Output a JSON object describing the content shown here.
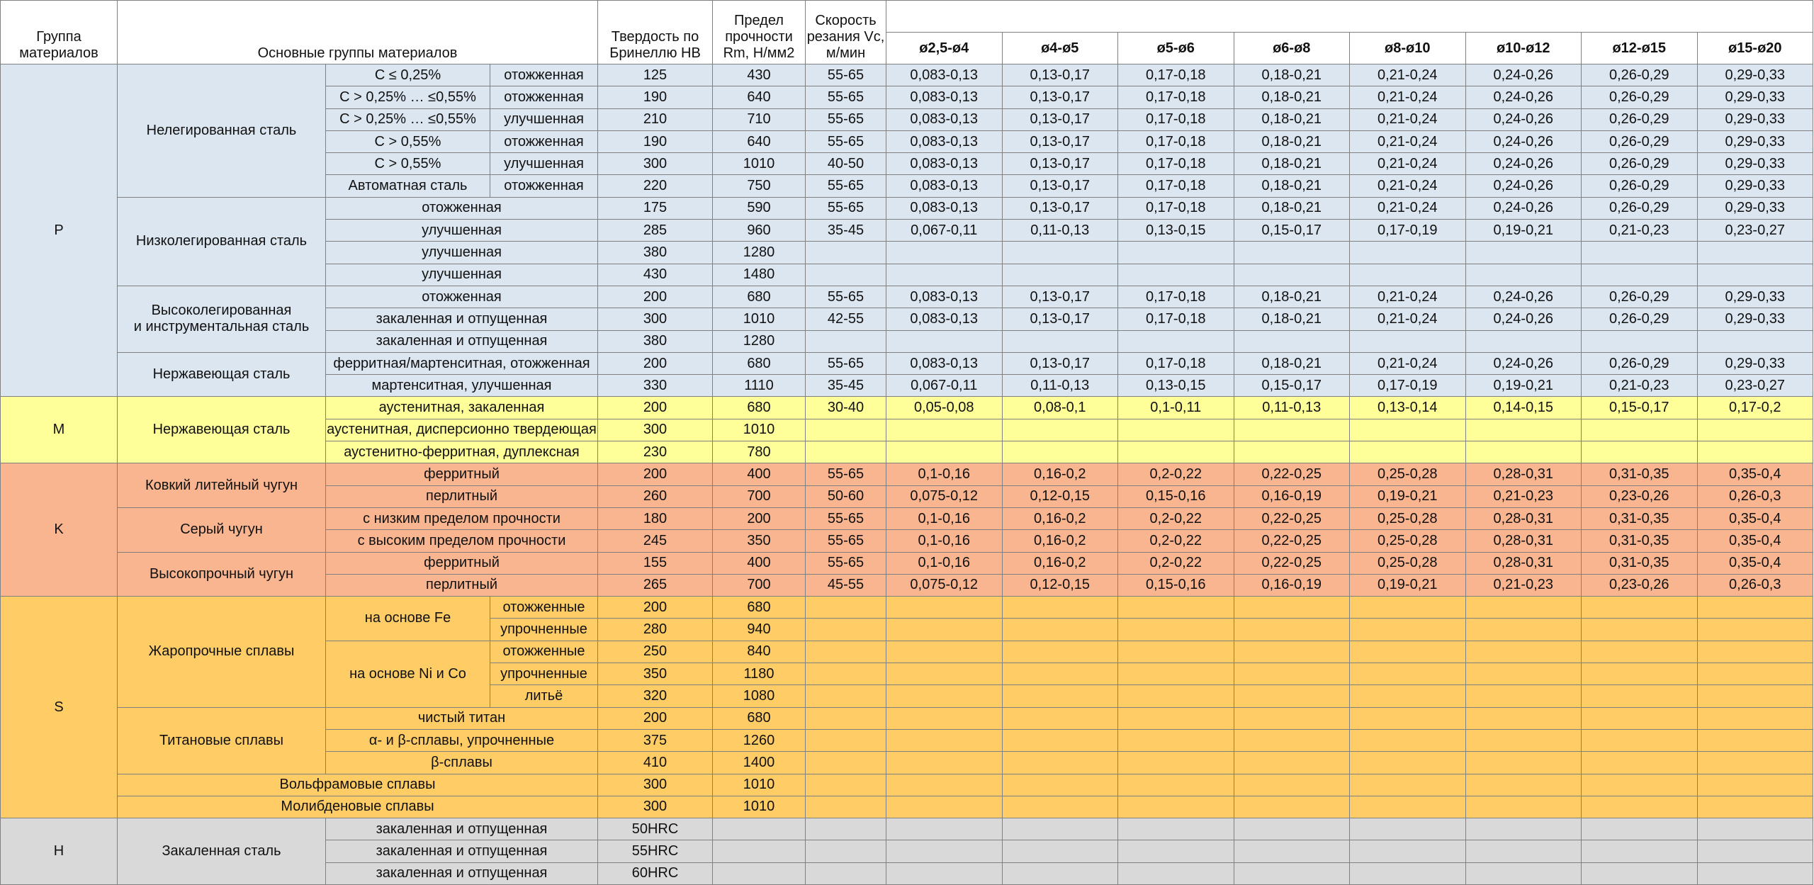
{
  "header": {
    "group": "Группа материалов",
    "main": "Основные группы материалов",
    "hb": "Твердость по Бринеллю HB",
    "rm": "Предел прочности Rm, Н/мм2",
    "vc": "Скорость резания Vc, м/мин",
    "diameters": [
      "ø2,5-ø4",
      "ø4-ø5",
      "ø5-ø6",
      "ø6-ø8",
      "ø8-ø10",
      "ø10-ø12",
      "ø12-ø15",
      "ø15-ø20"
    ]
  },
  "groups": [
    {
      "code": "P",
      "color": "#dce6f1",
      "families": [
        {
          "name": "Нелегированная сталь",
          "rows": [
            {
              "sub": "C ≤ 0,25%",
              "cond": "отожженная",
              "hb": 125,
              "rm": 430,
              "vc": "55-65",
              "feeds": [
                "0,083-0,13",
                "0,13-0,17",
                "0,17-0,18",
                "0,18-0,21",
                "0,21-0,24",
                "0,24-0,26",
                "0,26-0,29",
                "0,29-0,33"
              ]
            },
            {
              "sub": "C > 0,25% … ≤0,55%",
              "cond": "отожженная",
              "hb": 190,
              "rm": 640,
              "vc": "55-65",
              "feeds": [
                "0,083-0,13",
                "0,13-0,17",
                "0,17-0,18",
                "0,18-0,21",
                "0,21-0,24",
                "0,24-0,26",
                "0,26-0,29",
                "0,29-0,33"
              ]
            },
            {
              "sub": "C > 0,25% … ≤0,55%",
              "cond": "улучшенная",
              "hb": 210,
              "rm": 710,
              "vc": "55-65",
              "feeds": [
                "0,083-0,13",
                "0,13-0,17",
                "0,17-0,18",
                "0,18-0,21",
                "0,21-0,24",
                "0,24-0,26",
                "0,26-0,29",
                "0,29-0,33"
              ]
            },
            {
              "sub": "C > 0,55%",
              "cond": "отожженная",
              "hb": 190,
              "rm": 640,
              "vc": "55-65",
              "feeds": [
                "0,083-0,13",
                "0,13-0,17",
                "0,17-0,18",
                "0,18-0,21",
                "0,21-0,24",
                "0,24-0,26",
                "0,26-0,29",
                "0,29-0,33"
              ]
            },
            {
              "sub": "C > 0,55%",
              "cond": "улучшенная",
              "hb": 300,
              "rm": 1010,
              "vc": "40-50",
              "feeds": [
                "0,083-0,13",
                "0,13-0,17",
                "0,17-0,18",
                "0,18-0,21",
                "0,21-0,24",
                "0,24-0,26",
                "0,26-0,29",
                "0,29-0,33"
              ]
            },
            {
              "sub": "Автоматная сталь",
              "cond": "отожженная",
              "hb": 220,
              "rm": 750,
              "vc": "55-65",
              "feeds": [
                "0,083-0,13",
                "0,13-0,17",
                "0,17-0,18",
                "0,18-0,21",
                "0,21-0,24",
                "0,24-0,26",
                "0,26-0,29",
                "0,29-0,33"
              ]
            }
          ]
        },
        {
          "name": "Низколегированная сталь",
          "rows": [
            {
              "spec": "отожженная",
              "hb": 175,
              "rm": 590,
              "vc": "55-65",
              "feeds": [
                "0,083-0,13",
                "0,13-0,17",
                "0,17-0,18",
                "0,18-0,21",
                "0,21-0,24",
                "0,24-0,26",
                "0,26-0,29",
                "0,29-0,33"
              ]
            },
            {
              "spec": "улучшенная",
              "hb": 285,
              "rm": 960,
              "vc": "35-45",
              "feeds": [
                "0,067-0,11",
                "0,11-0,13",
                "0,13-0,15",
                "0,15-0,17",
                "0,17-0,19",
                "0,19-0,21",
                "0,21-0,23",
                "0,23-0,27"
              ]
            },
            {
              "spec": "улучшенная",
              "hb": 380,
              "rm": 1280
            },
            {
              "spec": "улучшенная",
              "hb": 430,
              "rm": 1480
            }
          ]
        },
        {
          "name": "Высоколегированная\nи инструментальная сталь",
          "rows": [
            {
              "spec": "отожженная",
              "hb": 200,
              "rm": 680,
              "vc": "55-65",
              "feeds": [
                "0,083-0,13",
                "0,13-0,17",
                "0,17-0,18",
                "0,18-0,21",
                "0,21-0,24",
                "0,24-0,26",
                "0,26-0,29",
                "0,29-0,33"
              ]
            },
            {
              "spec": "закаленная и отпущенная",
              "hb": 300,
              "rm": 1010,
              "vc": "42-55",
              "feeds": [
                "0,083-0,13",
                "0,13-0,17",
                "0,17-0,18",
                "0,18-0,21",
                "0,21-0,24",
                "0,24-0,26",
                "0,26-0,29",
                "0,29-0,33"
              ]
            },
            {
              "spec": "закаленная и отпущенная",
              "hb": 380,
              "rm": 1280
            }
          ]
        },
        {
          "name": "Нержавеющая сталь",
          "rows": [
            {
              "spec": "ферритная/мартенситная, отожженная",
              "hb": 200,
              "rm": 680,
              "vc": "55-65",
              "feeds": [
                "0,083-0,13",
                "0,13-0,17",
                "0,17-0,18",
                "0,18-0,21",
                "0,21-0,24",
                "0,24-0,26",
                "0,26-0,29",
                "0,29-0,33"
              ]
            },
            {
              "spec": "мартенситная, улучшенная",
              "hb": 330,
              "rm": 1110,
              "vc": "35-45",
              "feeds": [
                "0,067-0,11",
                "0,11-0,13",
                "0,13-0,15",
                "0,15-0,17",
                "0,17-0,19",
                "0,19-0,21",
                "0,21-0,23",
                "0,23-0,27"
              ]
            }
          ]
        }
      ]
    },
    {
      "code": "M",
      "color": "#ffff99",
      "families": [
        {
          "name": "Нержавеющая сталь",
          "rows": [
            {
              "spec": "аустенитная, закаленная",
              "hb": 200,
              "rm": 680,
              "vc": "30-40",
              "feeds": [
                "0,05-0,08",
                "0,08-0,1",
                "0,1-0,11",
                "0,11-0,13",
                "0,13-0,14",
                "0,14-0,15",
                "0,15-0,17",
                "0,17-0,2"
              ]
            },
            {
              "spec": "аустенитная, дисперсионно твердеющая",
              "hb": 300,
              "rm": 1010
            },
            {
              "spec": "аустенитно-ферритная, дуплексная",
              "hb": 230,
              "rm": 780
            }
          ]
        }
      ]
    },
    {
      "code": "K",
      "color": "#f8b58f",
      "families": [
        {
          "name": "Ковкий литейный чугун",
          "rows": [
            {
              "spec": "ферритный",
              "hb": 200,
              "rm": 400,
              "vc": "55-65",
              "feeds": [
                "0,1-0,16",
                "0,16-0,2",
                "0,2-0,22",
                "0,22-0,25",
                "0,25-0,28",
                "0,28-0,31",
                "0,31-0,35",
                "0,35-0,4"
              ]
            },
            {
              "spec": "перлитный",
              "hb": 260,
              "rm": 700,
              "vc": "50-60",
              "feeds": [
                "0,075-0,12",
                "0,12-0,15",
                "0,15-0,16",
                "0,16-0,19",
                "0,19-0,21",
                "0,21-0,23",
                "0,23-0,26",
                "0,26-0,3"
              ]
            }
          ]
        },
        {
          "name": "Серый чугун",
          "rows": [
            {
              "spec": "с низким пределом прочности",
              "hb": 180,
              "rm": 200,
              "vc": "55-65",
              "feeds": [
                "0,1-0,16",
                "0,16-0,2",
                "0,2-0,22",
                "0,22-0,25",
                "0,25-0,28",
                "0,28-0,31",
                "0,31-0,35",
                "0,35-0,4"
              ]
            },
            {
              "spec": "с высоким пределом прочности",
              "hb": 245,
              "rm": 350,
              "vc": "55-65",
              "feeds": [
                "0,1-0,16",
                "0,16-0,2",
                "0,2-0,22",
                "0,22-0,25",
                "0,25-0,28",
                "0,28-0,31",
                "0,31-0,35",
                "0,35-0,4"
              ]
            }
          ]
        },
        {
          "name": "Высокопрочный чугун",
          "rows": [
            {
              "spec": "ферритный",
              "hb": 155,
              "rm": 400,
              "vc": "55-65",
              "feeds": [
                "0,1-0,16",
                "0,16-0,2",
                "0,2-0,22",
                "0,22-0,25",
                "0,25-0,28",
                "0,28-0,31",
                "0,31-0,35",
                "0,35-0,4"
              ]
            },
            {
              "spec": "перлитный",
              "hb": 265,
              "rm": 700,
              "vc": "45-55",
              "feeds": [
                "0,075-0,12",
                "0,12-0,15",
                "0,15-0,16",
                "0,16-0,19",
                "0,19-0,21",
                "0,21-0,23",
                "0,23-0,26",
                "0,26-0,3"
              ]
            }
          ]
        }
      ]
    },
    {
      "code": "S",
      "color": "#ffcc66",
      "families": [
        {
          "name": "Жаропрочные сплавы",
          "subgroups": [
            {
              "name": "на основе Fe",
              "rows": [
                {
                  "cond": "отожженные",
                  "hb": 200,
                  "rm": 680
                },
                {
                  "cond": "упрочненные",
                  "hb": 280,
                  "rm": 940
                }
              ]
            },
            {
              "name": "на основе Ni и Co",
              "rows": [
                {
                  "cond": "отожженные",
                  "hb": 250,
                  "rm": 840
                },
                {
                  "cond": "упрочненные",
                  "hb": 350,
                  "rm": 1180
                },
                {
                  "cond": "литьё",
                  "hb": 320,
                  "rm": 1080
                }
              ]
            }
          ]
        },
        {
          "name": "Титановые сплавы",
          "rows": [
            {
              "spec": "чистый титан",
              "hb": 200,
              "rm": 680
            },
            {
              "spec": "α- и β-сплавы, упрочненные",
              "hb": 375,
              "rm": 1260
            },
            {
              "spec": "β-сплавы",
              "hb": 410,
              "rm": 1400
            }
          ]
        },
        {
          "name": "Вольфрамовые сплавы",
          "rows": [
            {
              "hb": 300,
              "rm": 1010
            }
          ]
        },
        {
          "name": "Молибденовые сплавы",
          "rows": [
            {
              "hb": 300,
              "rm": 1010
            }
          ]
        }
      ]
    },
    {
      "code": "H",
      "color": "#d9d9d9",
      "families": [
        {
          "name": "Закаленная сталь",
          "rows": [
            {
              "spec": "закаленная и отпущенная",
              "hb": "50HRC"
            },
            {
              "spec": "закаленная и отпущенная",
              "hb": "55HRC"
            },
            {
              "spec": "закаленная и отпущенная",
              "hb": "60HRC"
            }
          ]
        }
      ]
    }
  ]
}
